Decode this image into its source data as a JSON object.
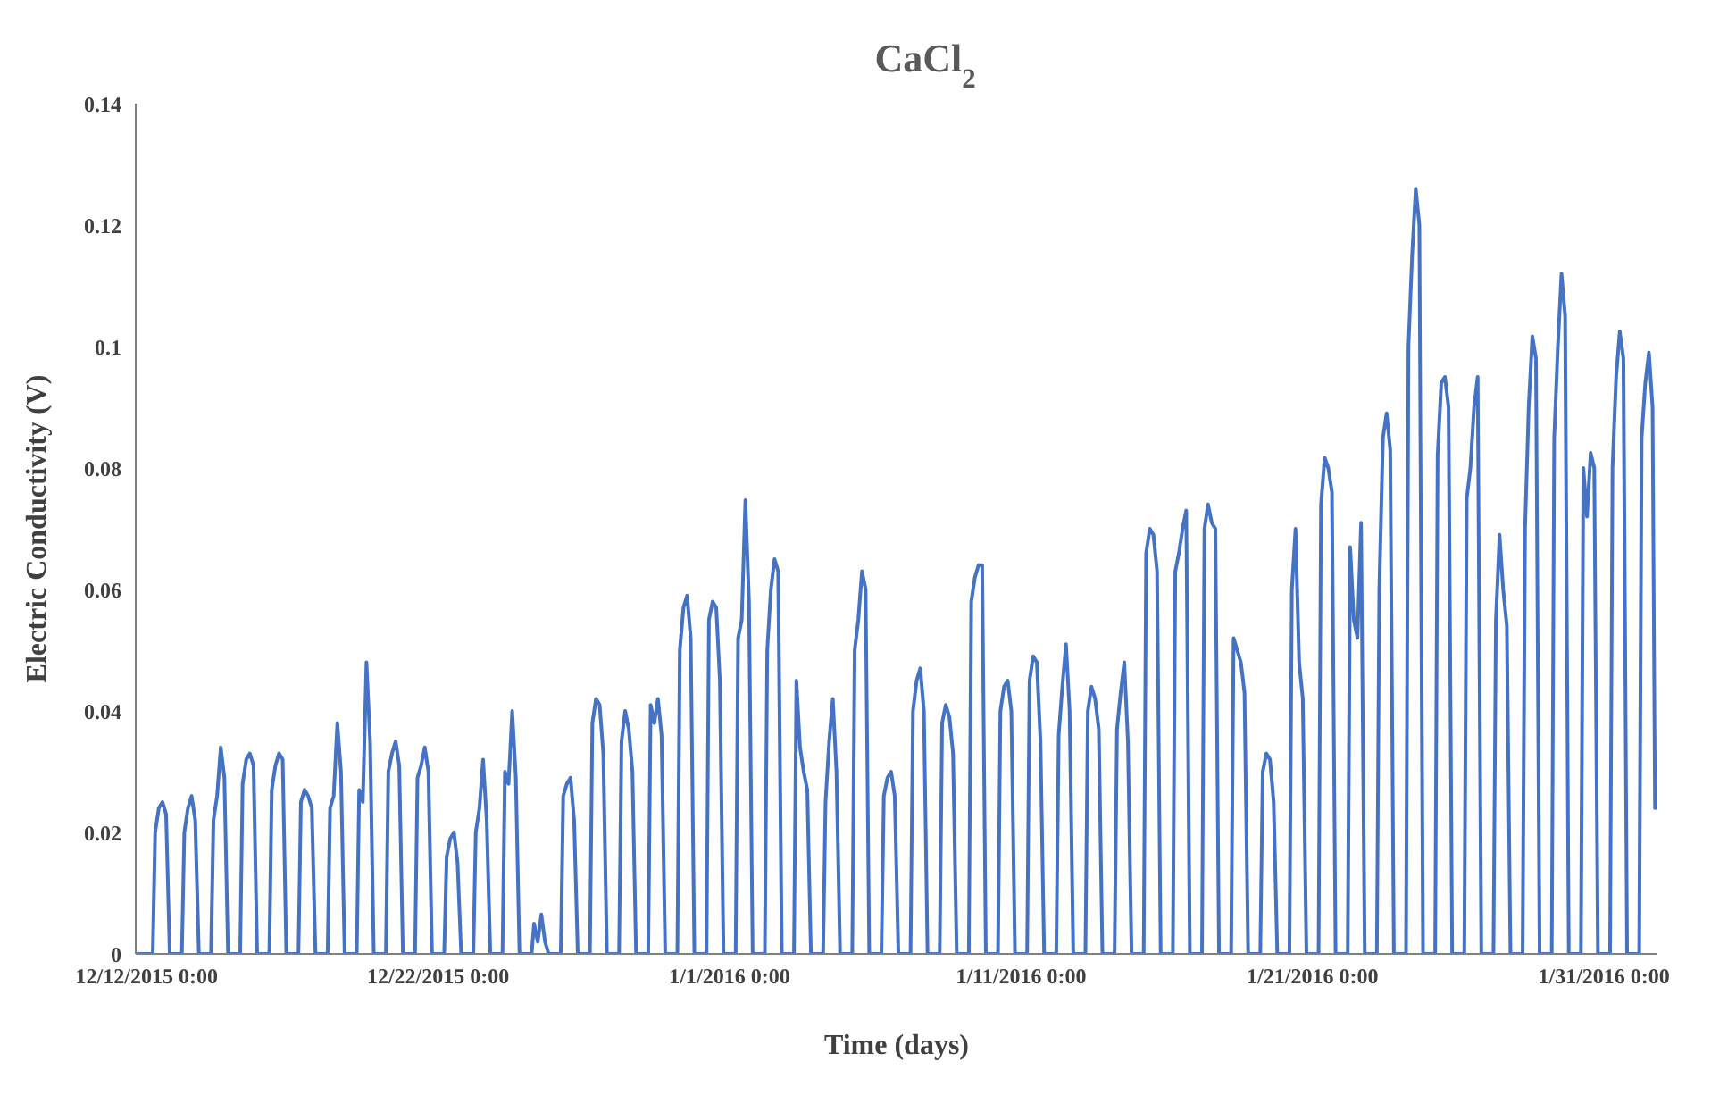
{
  "chart_data": {
    "type": "line",
    "title": "CaCl$_{2}$",
    "xlabel": "Time (days)",
    "ylabel": "Electric Conductivity (V)",
    "xlim": [
      "2015-12-11T15:00",
      "2016-02-01T20:00"
    ],
    "xticks": [
      {
        "value": "2015-12-12",
        "label": "12/12/2015 0:00"
      },
      {
        "value": "2015-12-22",
        "label": "12/22/2015 0:00"
      },
      {
        "value": "2016-01-01",
        "label": "1/1/2016 0:00"
      },
      {
        "value": "2016-01-11",
        "label": "1/11/2016 0:00"
      },
      {
        "value": "2016-01-21",
        "label": "1/21/2016 0:00"
      },
      {
        "value": "2016-01-31",
        "label": "1/31/2016 0:00"
      }
    ],
    "ylim": [
      0,
      0.14
    ],
    "yticks": [
      0,
      0.02,
      0.04,
      0.06,
      0.08,
      0.1,
      0.12,
      0.14
    ],
    "x": [
      "2015-12-11T15:00",
      "2015-12-12T05:00",
      "2015-12-12T07:00",
      "2015-12-12T10:00",
      "2015-12-12T13:00",
      "2015-12-12T16:00",
      "2015-12-12T19:00",
      "2015-12-13T05:00",
      "2015-12-13T07:00",
      "2015-12-13T10:00",
      "2015-12-13T13:00",
      "2015-12-13T16:00",
      "2015-12-13T19:00",
      "2015-12-14T05:00",
      "2015-12-14T07:00",
      "2015-12-14T10:00",
      "2015-12-14T13:00",
      "2015-12-14T16:00",
      "2015-12-14T19:00",
      "2015-12-15T05:00",
      "2015-12-15T07:00",
      "2015-12-15T10:00",
      "2015-12-15T13:00",
      "2015-12-15T16:00",
      "2015-12-15T19:00",
      "2015-12-16T05:00",
      "2015-12-16T07:00",
      "2015-12-16T10:00",
      "2015-12-16T13:00",
      "2015-12-16T16:00",
      "2015-12-16T19:00",
      "2015-12-17T05:00",
      "2015-12-17T07:00",
      "2015-12-17T10:00",
      "2015-12-17T13:00",
      "2015-12-17T16:00",
      "2015-12-17T19:00",
      "2015-12-18T05:00",
      "2015-12-18T07:00",
      "2015-12-18T10:00",
      "2015-12-18T13:00",
      "2015-12-18T16:00",
      "2015-12-18T19:00",
      "2015-12-19T05:00",
      "2015-12-19T07:00",
      "2015-12-19T10:00",
      "2015-12-19T13:00",
      "2015-12-19T16:00",
      "2015-12-19T19:00",
      "2015-12-20T05:00",
      "2015-12-20T07:00",
      "2015-12-20T10:00",
      "2015-12-20T13:00",
      "2015-12-20T16:00",
      "2015-12-20T19:00",
      "2015-12-21T05:00",
      "2015-12-21T07:00",
      "2015-12-21T10:00",
      "2015-12-21T13:00",
      "2015-12-21T16:00",
      "2015-12-21T19:00",
      "2015-12-22T05:00",
      "2015-12-22T07:00",
      "2015-12-22T10:00",
      "2015-12-22T13:00",
      "2015-12-22T16:00",
      "2015-12-22T19:00",
      "2015-12-23T05:00",
      "2015-12-23T07:00",
      "2015-12-23T10:00",
      "2015-12-23T13:00",
      "2015-12-23T16:00",
      "2015-12-23T19:00",
      "2015-12-24T05:00",
      "2015-12-24T07:00",
      "2015-12-24T10:00",
      "2015-12-24T13:00",
      "2015-12-24T16:00",
      "2015-12-24T19:00",
      "2015-12-25T05:00",
      "2015-12-25T07:00",
      "2015-12-25T10:00",
      "2015-12-25T13:00",
      "2015-12-25T16:00",
      "2015-12-25T19:00",
      "2015-12-26T05:00",
      "2015-12-26T07:00",
      "2015-12-26T10:00",
      "2015-12-26T13:00",
      "2015-12-26T16:00",
      "2015-12-26T19:00",
      "2015-12-27T05:00",
      "2015-12-27T07:00",
      "2015-12-27T10:00",
      "2015-12-27T13:00",
      "2015-12-27T16:00",
      "2015-12-27T19:00",
      "2015-12-28T05:00",
      "2015-12-28T07:00",
      "2015-12-28T10:00",
      "2015-12-28T13:00",
      "2015-12-28T16:00",
      "2015-12-28T19:00",
      "2015-12-29T05:00",
      "2015-12-29T07:00",
      "2015-12-29T10:00",
      "2015-12-29T13:00",
      "2015-12-29T16:00",
      "2015-12-29T19:00",
      "2015-12-30T05:00",
      "2015-12-30T07:00",
      "2015-12-30T10:00",
      "2015-12-30T13:00",
      "2015-12-30T16:00",
      "2015-12-30T19:00",
      "2015-12-31T05:00",
      "2015-12-31T07:00",
      "2015-12-31T10:00",
      "2015-12-31T13:00",
      "2015-12-31T16:00",
      "2015-12-31T19:00",
      "2016-01-01T05:00",
      "2016-01-01T07:00",
      "2016-01-01T10:00",
      "2016-01-01T13:00",
      "2016-01-01T16:00",
      "2016-01-01T19:00",
      "2016-01-02T05:00",
      "2016-01-02T07:00",
      "2016-01-02T10:00",
      "2016-01-02T13:00",
      "2016-01-02T16:00",
      "2016-01-02T19:00",
      "2016-01-03T05:00",
      "2016-01-03T07:00",
      "2016-01-03T10:00",
      "2016-01-03T13:00",
      "2016-01-03T16:00",
      "2016-01-03T19:00",
      "2016-01-04T05:00",
      "2016-01-04T07:00",
      "2016-01-04T10:00",
      "2016-01-04T13:00",
      "2016-01-04T16:00",
      "2016-01-04T19:00",
      "2016-01-05T05:00",
      "2016-01-05T07:00",
      "2016-01-05T10:00",
      "2016-01-05T13:00",
      "2016-01-05T16:00",
      "2016-01-05T19:00",
      "2016-01-06T05:00",
      "2016-01-06T07:00",
      "2016-01-06T10:00",
      "2016-01-06T13:00",
      "2016-01-06T16:00",
      "2016-01-06T19:00",
      "2016-01-07T05:00",
      "2016-01-07T07:00",
      "2016-01-07T10:00",
      "2016-01-07T13:00",
      "2016-01-07T16:00",
      "2016-01-07T19:00",
      "2016-01-08T05:00",
      "2016-01-08T07:00",
      "2016-01-08T10:00",
      "2016-01-08T13:00",
      "2016-01-08T16:00",
      "2016-01-08T19:00",
      "2016-01-09T05:00",
      "2016-01-09T07:00",
      "2016-01-09T10:00",
      "2016-01-09T13:00",
      "2016-01-09T16:00",
      "2016-01-09T19:00",
      "2016-01-10T05:00",
      "2016-01-10T07:00",
      "2016-01-10T10:00",
      "2016-01-10T13:00",
      "2016-01-10T16:00",
      "2016-01-10T19:00",
      "2016-01-11T05:00",
      "2016-01-11T07:00",
      "2016-01-11T10:00",
      "2016-01-11T13:00",
      "2016-01-11T16:00",
      "2016-01-11T19:00",
      "2016-01-12T05:00",
      "2016-01-12T07:00",
      "2016-01-12T10:00",
      "2016-01-12T13:00",
      "2016-01-12T16:00",
      "2016-01-12T19:00",
      "2016-01-13T05:00",
      "2016-01-13T07:00",
      "2016-01-13T10:00",
      "2016-01-13T13:00",
      "2016-01-13T16:00",
      "2016-01-13T19:00",
      "2016-01-14T05:00",
      "2016-01-14T07:00",
      "2016-01-14T10:00",
      "2016-01-14T13:00",
      "2016-01-14T16:00",
      "2016-01-14T19:00",
      "2016-01-15T05:00",
      "2016-01-15T07:00",
      "2016-01-15T10:00",
      "2016-01-15T13:00",
      "2016-01-15T16:00",
      "2016-01-15T19:00",
      "2016-01-16T05:00",
      "2016-01-16T07:00",
      "2016-01-16T10:00",
      "2016-01-16T13:00",
      "2016-01-16T16:00",
      "2016-01-16T19:00",
      "2016-01-17T05:00",
      "2016-01-17T07:00",
      "2016-01-17T10:00",
      "2016-01-17T13:00",
      "2016-01-17T16:00",
      "2016-01-17T19:00",
      "2016-01-18T05:00",
      "2016-01-18T07:00",
      "2016-01-18T10:00",
      "2016-01-18T13:00",
      "2016-01-18T16:00",
      "2016-01-18T19:00",
      "2016-01-19T05:00",
      "2016-01-19T07:00",
      "2016-01-19T10:00",
      "2016-01-19T13:00",
      "2016-01-19T16:00",
      "2016-01-19T19:00",
      "2016-01-20T05:00",
      "2016-01-20T07:00",
      "2016-01-20T10:00",
      "2016-01-20T13:00",
      "2016-01-20T16:00",
      "2016-01-20T19:00",
      "2016-01-21T05:00",
      "2016-01-21T07:00",
      "2016-01-21T10:00",
      "2016-01-21T13:00",
      "2016-01-21T16:00",
      "2016-01-21T19:00",
      "2016-01-22T05:00",
      "2016-01-22T07:00",
      "2016-01-22T10:00",
      "2016-01-22T13:00",
      "2016-01-22T16:00",
      "2016-01-22T19:00",
      "2016-01-23T05:00",
      "2016-01-23T07:00",
      "2016-01-23T10:00",
      "2016-01-23T13:00",
      "2016-01-23T16:00",
      "2016-01-23T19:00",
      "2016-01-24T05:00",
      "2016-01-24T07:00",
      "2016-01-24T10:00",
      "2016-01-24T13:00",
      "2016-01-24T16:00",
      "2016-01-24T19:00",
      "2016-01-25T05:00",
      "2016-01-25T07:00",
      "2016-01-25T10:00",
      "2016-01-25T13:00",
      "2016-01-25T16:00",
      "2016-01-25T19:00",
      "2016-01-26T05:00",
      "2016-01-26T07:00",
      "2016-01-26T10:00",
      "2016-01-26T13:00",
      "2016-01-26T16:00",
      "2016-01-26T19:00",
      "2016-01-27T05:00",
      "2016-01-27T07:00",
      "2016-01-27T10:00",
      "2016-01-27T13:00",
      "2016-01-27T16:00",
      "2016-01-27T19:00",
      "2016-01-28T05:00",
      "2016-01-28T07:00",
      "2016-01-28T10:00",
      "2016-01-28T13:00",
      "2016-01-28T16:00",
      "2016-01-28T19:00",
      "2016-01-29T05:00",
      "2016-01-29T07:00",
      "2016-01-29T10:00",
      "2016-01-29T13:00",
      "2016-01-29T16:00",
      "2016-01-29T19:00",
      "2016-01-30T05:00",
      "2016-01-30T07:00",
      "2016-01-30T10:00",
      "2016-01-30T13:00",
      "2016-01-30T16:00",
      "2016-01-30T19:00",
      "2016-01-31T05:00",
      "2016-01-31T07:00",
      "2016-01-31T10:00",
      "2016-01-31T13:00",
      "2016-01-31T16:00",
      "2016-01-31T19:00",
      "2016-02-01T05:00",
      "2016-02-01T07:00",
      "2016-02-01T10:00",
      "2016-02-01T13:00",
      "2016-02-01T16:00",
      "2016-02-01T18:00"
    ],
    "series": [
      {
        "color": "#4472c4",
        "values": [
          0,
          0,
          0.02,
          0.024,
          0.025,
          0.023,
          0,
          0,
          0.02,
          0.024,
          0.026,
          0.022,
          0,
          0,
          0.022,
          0.026,
          0.034,
          0.029,
          0,
          0,
          0.028,
          0.032,
          0.033,
          0.031,
          0,
          0,
          0.027,
          0.031,
          0.033,
          0.032,
          0,
          0,
          0.025,
          0.027,
          0.026,
          0.024,
          0,
          0,
          0.024,
          0.026,
          0.038,
          0.03,
          0,
          0,
          0.027,
          0.025,
          0.048,
          0.035,
          0,
          0,
          0.03,
          0.033,
          0.035,
          0.031,
          0,
          0,
          0.029,
          0.031,
          0.034,
          0.03,
          0,
          0,
          0.016,
          0.019,
          0.02,
          0.015,
          0,
          0,
          0.02,
          0.024,
          0.032,
          0.022,
          0,
          0,
          0.03,
          0.028,
          0.04,
          0.029,
          0,
          0,
          0.005,
          0.002,
          0.0065,
          0.002,
          0,
          0,
          0.026,
          0.028,
          0.029,
          0.022,
          0,
          0,
          0.038,
          0.042,
          0.041,
          0.033,
          0,
          0,
          0.035,
          0.04,
          0.037,
          0.03,
          0,
          0,
          0.041,
          0.038,
          0.042,
          0.036,
          0,
          0,
          0.05,
          0.057,
          0.059,
          0.052,
          0,
          0,
          0.055,
          0.058,
          0.057,
          0.045,
          0,
          0,
          0.052,
          0.055,
          0.0747,
          0.058,
          0,
          0,
          0.05,
          0.06,
          0.065,
          0.063,
          0,
          0,
          0.045,
          0.034,
          0.03,
          0.027,
          0,
          0,
          0.025,
          0.035,
          0.042,
          0.03,
          0,
          0,
          0.05,
          0.055,
          0.063,
          0.06,
          0,
          0,
          0.026,
          0.029,
          0.03,
          0.026,
          0,
          0,
          0.04,
          0.045,
          0.047,
          0.04,
          0,
          0,
          0.038,
          0.041,
          0.039,
          0.033,
          0,
          0,
          0.058,
          0.062,
          0.064,
          0.064,
          0,
          0,
          0.04,
          0.044,
          0.045,
          0.04,
          0,
          0,
          0.045,
          0.049,
          0.048,
          0.035,
          0,
          0,
          0.036,
          0.044,
          0.051,
          0.04,
          0,
          0,
          0.04,
          0.044,
          0.042,
          0.037,
          0,
          0,
          0.037,
          0.043,
          0.048,
          0.035,
          0,
          0,
          0.066,
          0.07,
          0.069,
          0.063,
          0,
          0,
          0.063,
          0.066,
          0.07,
          0.073,
          0,
          0,
          0.07,
          0.074,
          0.071,
          0.07,
          0,
          0,
          0.052,
          0.05,
          0.048,
          0.043,
          0,
          0,
          0.03,
          0.033,
          0.032,
          0.025,
          0,
          0,
          0.06,
          0.07,
          0.048,
          0.042,
          0,
          0,
          0.074,
          0.0817,
          0.08,
          0.076,
          0,
          0,
          0.067,
          0.055,
          0.052,
          0.071,
          0,
          0,
          0.06,
          0.085,
          0.089,
          0.083,
          0,
          0,
          0.1,
          0.115,
          0.126,
          0.12,
          0,
          0,
          0.082,
          0.094,
          0.095,
          0.09,
          0,
          0,
          0.075,
          0.08,
          0.09,
          0.095,
          0,
          0,
          0.055,
          0.069,
          0.06,
          0.054,
          0,
          0,
          0.07,
          0.09,
          0.1017,
          0.098,
          0,
          0,
          0.085,
          0.1,
          0.112,
          0.105,
          0,
          0,
          0.08,
          0.072,
          0.0825,
          0.08,
          0,
          0,
          0.08,
          0.095,
          0.1025,
          0.098,
          0,
          0,
          0.085,
          0.094,
          0.099,
          0.09,
          0.024
        ]
      }
    ]
  }
}
